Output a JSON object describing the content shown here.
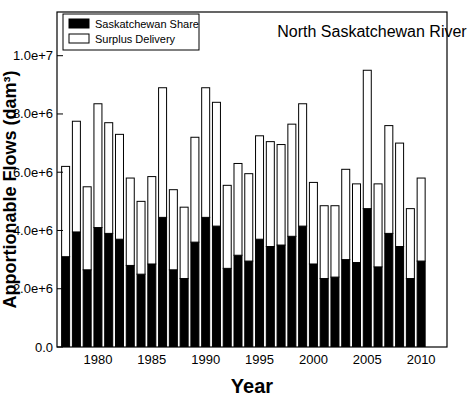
{
  "chart_data": {
    "type": "bar",
    "title": "North Saskatchewan River",
    "x_label": "Year",
    "y_label": "Apportionable Flows (dam³)",
    "stacked": true,
    "legend": "upper left",
    "grid": false,
    "x": [
      1977,
      1978,
      1979,
      1980,
      1981,
      1982,
      1983,
      1984,
      1985,
      1986,
      1987,
      1988,
      1989,
      1990,
      1991,
      1992,
      1993,
      1994,
      1995,
      1996,
      1997,
      1998,
      1999,
      2000,
      2001,
      2002,
      2003,
      2004,
      2005,
      2006,
      2007,
      2008,
      2009,
      2010
    ],
    "series": [
      {
        "name": "Saskatchewan Share",
        "color": "#000000",
        "values": [
          3100000,
          3950000,
          2650000,
          4100000,
          3900000,
          3700000,
          2800000,
          2500000,
          2850000,
          4450000,
          2650000,
          2350000,
          3600000,
          4450000,
          4150000,
          2700000,
          3150000,
          2950000,
          3700000,
          3450000,
          3500000,
          3800000,
          4150000,
          2850000,
          2350000,
          2400000,
          3000000,
          2900000,
          4750000,
          2750000,
          3900000,
          3450000,
          2350000,
          2950000
        ]
      },
      {
        "name": "Surplus Delivery",
        "color": "#ffffff",
        "values": [
          3100000,
          3800000,
          2850000,
          4250000,
          3800000,
          3600000,
          3000000,
          2500000,
          3000000,
          4450000,
          2750000,
          2450000,
          3600000,
          4450000,
          4250000,
          2850000,
          3150000,
          3000000,
          3550000,
          3600000,
          3450000,
          3850000,
          4200000,
          2800000,
          2500000,
          2450000,
          3100000,
          2700000,
          4750000,
          2850000,
          3700000,
          3550000,
          2400000,
          2850000
        ]
      }
    ],
    "xlim": [
      1976.2,
      2012.4
    ],
    "xticks": [
      1980,
      1985,
      1990,
      1995,
      2000,
      2005,
      2010
    ],
    "ylim": [
      0,
      11500000
    ],
    "yticks": [
      {
        "value": 0,
        "label": "0.0"
      },
      {
        "value": 2000000,
        "label": "2.0e+6"
      },
      {
        "value": 4000000,
        "label": "4.0e+6"
      },
      {
        "value": 6000000,
        "label": "6.0e+6"
      },
      {
        "value": 8000000,
        "label": "8.0e+6"
      },
      {
        "value": 10000000,
        "label": "1.0e+7"
      }
    ]
  }
}
